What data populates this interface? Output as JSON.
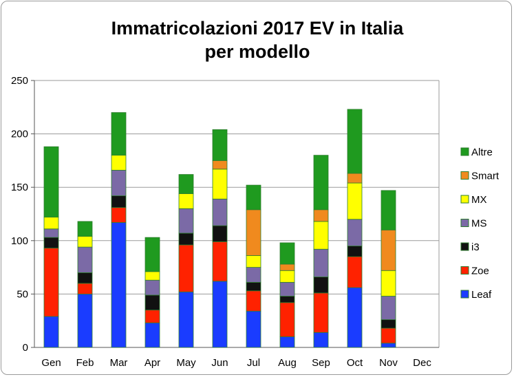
{
  "chart_data": {
    "type": "bar",
    "stacked": true,
    "title": "Immatricolazioni 2017 EV in Italia",
    "subtitle": "per modello",
    "xlabel": "",
    "ylabel": "",
    "ylim": [
      0,
      250
    ],
    "yticks": [
      0,
      50,
      100,
      150,
      200,
      250
    ],
    "grid": true,
    "legend_position": "right",
    "categories": [
      "Gen",
      "Feb",
      "Mar",
      "Apr",
      "May",
      "Jun",
      "Jul",
      "Aug",
      "Sep",
      "Oct",
      "Nov",
      "Dec"
    ],
    "series": [
      {
        "name": "Leaf",
        "color": "#1a3cff",
        "values": [
          29,
          50,
          117,
          23,
          52,
          62,
          34,
          10,
          14,
          56,
          4,
          0
        ]
      },
      {
        "name": "Zoe",
        "color": "#ff2200",
        "values": [
          64,
          10,
          14,
          12,
          44,
          37,
          19,
          32,
          37,
          29,
          14,
          0
        ]
      },
      {
        "name": "i3",
        "color": "#111111",
        "values": [
          10,
          10,
          11,
          14,
          11,
          15,
          8,
          6,
          15,
          10,
          8,
          0
        ]
      },
      {
        "name": "MS",
        "color": "#7b6aa6",
        "values": [
          8,
          24,
          24,
          14,
          23,
          25,
          14,
          13,
          26,
          25,
          22,
          0
        ]
      },
      {
        "name": "MX",
        "color": "#ffff00",
        "values": [
          11,
          10,
          14,
          8,
          14,
          28,
          11,
          11,
          26,
          34,
          24,
          0
        ]
      },
      {
        "name": "Smart",
        "color": "#f08a1e",
        "values": [
          0,
          0,
          0,
          0,
          0,
          8,
          43,
          6,
          11,
          9,
          38,
          0
        ]
      },
      {
        "name": "Altre",
        "color": "#1f9a1f",
        "values": [
          66,
          14,
          40,
          32,
          18,
          29,
          23,
          20,
          51,
          60,
          37,
          0
        ]
      }
    ]
  }
}
